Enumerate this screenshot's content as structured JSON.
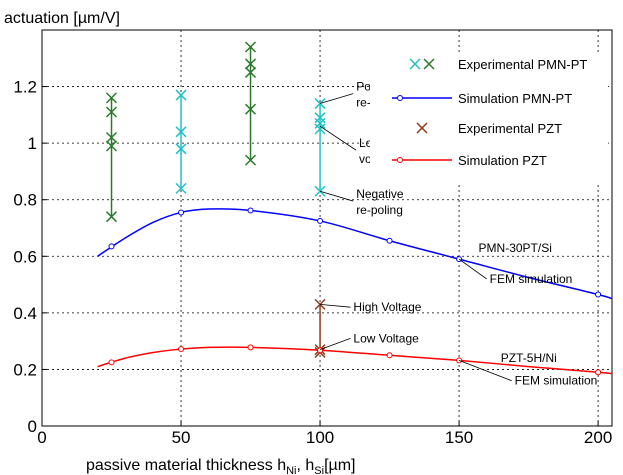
{
  "chart_data": {
    "type": "scatter",
    "title": "",
    "ylabel": "actuation [µm/V]",
    "xlabel_main": "passive material thickness h",
    "xlabel_sub1": "Ni",
    "xlabel_sep": ", h",
    "xlabel_sub2": "Si",
    "xlabel_tail": "[µm]",
    "xlim": [
      0,
      205
    ],
    "ylim": [
      0,
      1.4
    ],
    "grid": true,
    "legend_position": "top-right",
    "x_ticks": [
      0,
      50,
      100,
      150,
      200
    ],
    "x_tick_labels": [
      "0",
      "50",
      "100",
      "150",
      "200"
    ],
    "y_ticks": [
      0,
      0.2,
      0.4,
      0.6,
      0.8,
      1.0,
      1.2
    ],
    "y_tick_labels": [
      "0",
      "0.2",
      "0.4",
      "0.6",
      "0.8",
      "1",
      "1.2"
    ],
    "colors": {
      "exp_pmn_dark": "#2a7a2a",
      "exp_pmn_cyan": "#20c0c8",
      "sim_pmn": "#0000ff",
      "exp_pzt": "#8b3a1a",
      "sim_pzt": "#ff0000"
    },
    "series": [
      {
        "name": "Experimental PMN-PT",
        "kind": "markers-x",
        "groups": [
          {
            "x": 25,
            "color": "exp_pmn_dark",
            "values": [
              0.74,
              0.99,
              1.02,
              1.11,
              1.16
            ]
          },
          {
            "x": 50,
            "color": "exp_pmn_cyan",
            "values": [
              0.84,
              0.98,
              1.04,
              1.17
            ]
          },
          {
            "x": 75,
            "color": "exp_pmn_dark",
            "values": [
              0.94,
              1.12,
              1.25,
              1.28,
              1.34
            ]
          },
          {
            "x": 100,
            "color": "exp_pmn_cyan",
            "values": [
              0.83,
              1.05,
              1.07,
              1.09,
              1.14
            ]
          }
        ]
      },
      {
        "name": "Simulation PMN-PT",
        "kind": "line-markers",
        "color": "sim_pmn",
        "curve": [
          [
            20,
            0.6
          ],
          [
            30,
            0.665
          ],
          [
            40,
            0.72
          ],
          [
            50,
            0.755
          ],
          [
            60,
            0.767
          ],
          [
            75,
            0.762
          ],
          [
            100,
            0.725
          ],
          [
            125,
            0.655
          ],
          [
            150,
            0.59
          ],
          [
            175,
            0.525
          ],
          [
            200,
            0.465
          ],
          [
            205,
            0.45
          ]
        ],
        "markers": [
          [
            25,
            0.635
          ],
          [
            50,
            0.755
          ],
          [
            75,
            0.762
          ],
          [
            100,
            0.725
          ],
          [
            125,
            0.655
          ],
          [
            150,
            0.59
          ],
          [
            200,
            0.465
          ]
        ]
      },
      {
        "name": "Experimental PZT",
        "kind": "markers-x",
        "groups": [
          {
            "x": 100,
            "color": "exp_pzt",
            "values": [
              0.26,
              0.27,
              0.43
            ]
          }
        ]
      },
      {
        "name": "Simulation PZT",
        "kind": "line-markers",
        "color": "sim_pzt",
        "curve": [
          [
            20,
            0.21
          ],
          [
            30,
            0.24
          ],
          [
            40,
            0.26
          ],
          [
            50,
            0.272
          ],
          [
            60,
            0.278
          ],
          [
            75,
            0.278
          ],
          [
            100,
            0.268
          ],
          [
            125,
            0.25
          ],
          [
            150,
            0.232
          ],
          [
            175,
            0.21
          ],
          [
            200,
            0.19
          ],
          [
            205,
            0.185
          ]
        ],
        "markers": [
          [
            25,
            0.225
          ],
          [
            50,
            0.272
          ],
          [
            75,
            0.278
          ],
          [
            100,
            0.268
          ],
          [
            125,
            0.25
          ],
          [
            150,
            0.232
          ],
          [
            200,
            0.19
          ]
        ]
      }
    ],
    "annotations": [
      {
        "lines": [
          "Positive",
          "re-poling"
        ],
        "at": [
          100,
          1.14
        ],
        "tx": 113,
        "ty": 1.2
      },
      {
        "lines": [
          "Low",
          "voltage"
        ],
        "at": [
          100,
          1.06
        ],
        "tx": 114,
        "ty": 1.0
      },
      {
        "lines": [
          "Negative",
          "re-poling"
        ],
        "at": [
          100,
          0.83
        ],
        "tx": 113,
        "ty": 0.82
      },
      {
        "lines": [
          "High Voltage"
        ],
        "at": [
          100,
          0.43
        ],
        "tx": 112,
        "ty": 0.42
      },
      {
        "lines": [
          "Low Voltage"
        ],
        "at": [
          100,
          0.27
        ],
        "tx": 112,
        "ty": 0.31
      },
      {
        "lines": [
          "PMN-30PT/Si"
        ],
        "at": null,
        "tx": 157,
        "ty": 0.63
      },
      {
        "lines": [
          "FEM simulation"
        ],
        "at": [
          150,
          0.59
        ],
        "tx": 161,
        "ty": 0.52
      },
      {
        "lines": [
          "PZT-5H/Ni"
        ],
        "at": null,
        "tx": 165,
        "ty": 0.24
      },
      {
        "lines": [
          "FEM simulation"
        ],
        "at": [
          150,
          0.232
        ],
        "tx": 170,
        "ty": 0.16
      }
    ]
  }
}
